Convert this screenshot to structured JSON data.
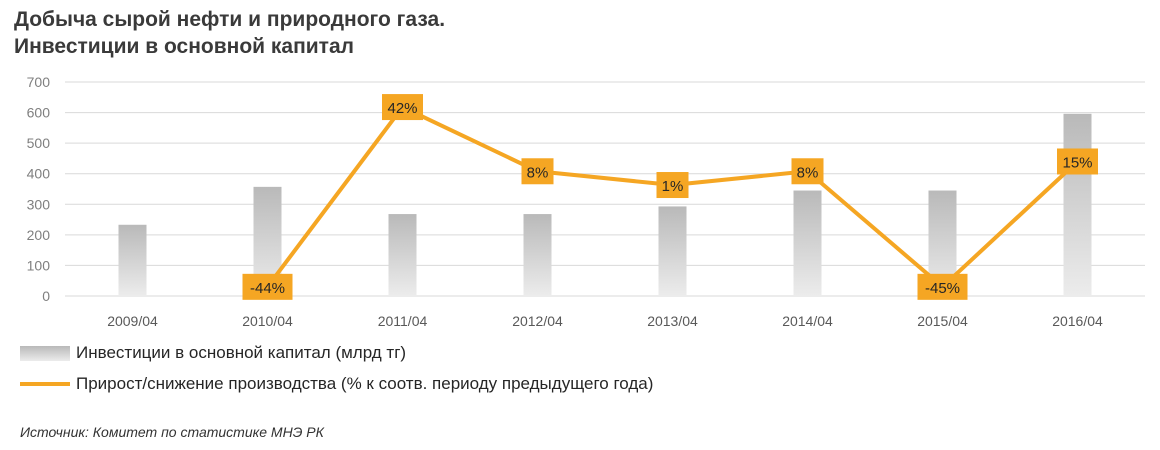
{
  "title_line1": "Добыча сырой нефти и природного газа.",
  "title_line2": "Инвестиции в основной капитал",
  "legend": {
    "bars": "Инвестиции в основной капитал (млрд тг)",
    "line": "Прирост/снижение производства (% к соотв. периоду предыдущего года)"
  },
  "source": "Источник: Комитет по статистике МНЭ РК",
  "colors": {
    "bar_top": "#b9b9b9",
    "bar_bottom": "#ececec",
    "line": "#f5a623",
    "grid": "#d9d9d9"
  },
  "chart_data": {
    "type": "bar",
    "categories": [
      "2009/04",
      "2010/04",
      "2011/04",
      "2012/04",
      "2013/04",
      "2014/04",
      "2015/04",
      "2016/04"
    ],
    "ylim": [
      0,
      700
    ],
    "yticks": [
      0,
      100,
      200,
      300,
      400,
      500,
      600,
      700
    ],
    "grid": true,
    "legend_position": "bottom",
    "series": [
      {
        "name": "Инвестиции в основной капитал (млрд тг)",
        "kind": "bar",
        "values": [
          233,
          357,
          268,
          268,
          293,
          345,
          345,
          596
        ]
      },
      {
        "name": "Прирост/снижение производства (% к соотв. периоду предыдущего года)",
        "kind": "line",
        "values": [
          null,
          30,
          618,
          408,
          363,
          408,
          30,
          440
        ],
        "labels": [
          "",
          "-44%",
          "42%",
          "8%",
          "1%",
          "8%",
          "-45%",
          "15%"
        ]
      }
    ]
  }
}
